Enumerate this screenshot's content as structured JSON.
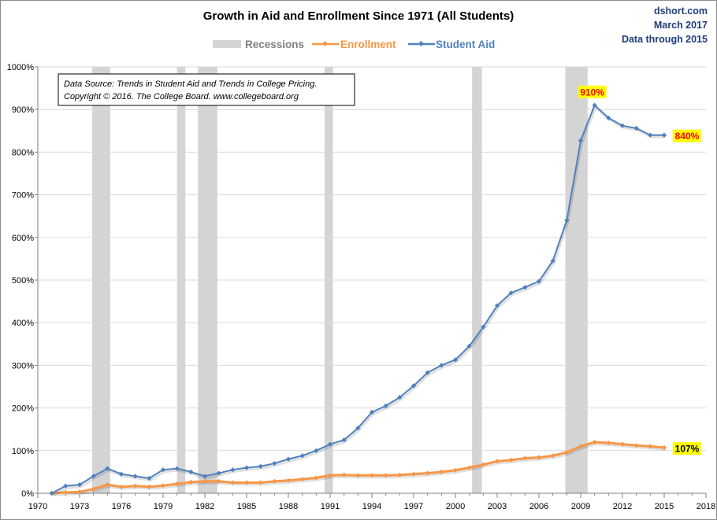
{
  "chart_data": {
    "type": "line",
    "title": "Growth in Aid and Enrollment Since 1971 (All Students)",
    "source": [
      "dshort.com",
      "March 2017",
      "Data through 2015"
    ],
    "note": [
      "Data Source:  Trends  in Student Aid and Trends  in College Pricing.",
      "Copyright © 2016. The College Board. www.collegeboard.org"
    ],
    "legend": [
      "Recessions",
      "Enrollment",
      "Student Aid"
    ],
    "colors": {
      "recession": "#d4d4d4",
      "enrollment": "#f79646",
      "aid": "#4f81bd",
      "label_bg": "#ffff00",
      "label_aid": "#ff0000",
      "label_enr": "#000000",
      "grid": "#d9d9d9"
    },
    "xlim": [
      1970,
      2018
    ],
    "ylim": [
      0,
      1000
    ],
    "xticks": [
      1970,
      1973,
      1976,
      1979,
      1982,
      1985,
      1988,
      1991,
      1994,
      1997,
      2000,
      2003,
      2006,
      2009,
      2012,
      2015,
      2018
    ],
    "yticks": [
      0,
      100,
      200,
      300,
      400,
      500,
      600,
      700,
      800,
      900,
      1000
    ],
    "ytick_labels": [
      "0%",
      "100%",
      "200%",
      "300%",
      "400%",
      "500%",
      "600%",
      "700%",
      "800%",
      "900%",
      "1000%"
    ],
    "recessions": [
      [
        1973.9,
        1975.2
      ],
      [
        1980.0,
        1980.6
      ],
      [
        1981.5,
        1982.9
      ],
      [
        1990.6,
        1991.2
      ],
      [
        2001.2,
        2001.9
      ],
      [
        2007.9,
        2009.5
      ]
    ],
    "x": [
      1971,
      1972,
      1973,
      1974,
      1975,
      1976,
      1977,
      1978,
      1979,
      1980,
      1981,
      1982,
      1983,
      1984,
      1985,
      1986,
      1987,
      1988,
      1989,
      1990,
      1991,
      1992,
      1993,
      1994,
      1995,
      1996,
      1997,
      1998,
      1999,
      2000,
      2001,
      2002,
      2003,
      2004,
      2005,
      2006,
      2007,
      2008,
      2009,
      2010,
      2011,
      2012,
      2013,
      2014,
      2015
    ],
    "series": [
      {
        "name": "Student Aid",
        "values": [
          0,
          17,
          20,
          40,
          58,
          45,
          40,
          35,
          55,
          58,
          50,
          40,
          47,
          55,
          60,
          63,
          70,
          80,
          88,
          100,
          115,
          125,
          153,
          190,
          205,
          225,
          252,
          283,
          300,
          313,
          345,
          390,
          440,
          470,
          483,
          497,
          545,
          640,
          827,
          910,
          880,
          862,
          856,
          840,
          840
        ]
      },
      {
        "name": "Enrollment",
        "values": [
          0,
          2,
          3,
          10,
          20,
          15,
          17,
          15,
          18,
          22,
          26,
          28,
          28,
          25,
          25,
          25,
          28,
          30,
          33,
          36,
          42,
          43,
          42,
          42,
          42,
          43,
          45,
          47,
          50,
          54,
          60,
          67,
          75,
          78,
          82,
          84,
          88,
          96,
          110,
          120,
          118,
          115,
          112,
          110,
          107
        ]
      }
    ],
    "annotations": [
      {
        "text": "910%",
        "x": 2010,
        "y": 910,
        "series": "Student Aid"
      },
      {
        "text": "840%",
        "x": 2015,
        "y": 840,
        "series": "Student Aid"
      },
      {
        "text": "107%",
        "x": 2015,
        "y": 107,
        "series": "Enrollment"
      }
    ]
  }
}
